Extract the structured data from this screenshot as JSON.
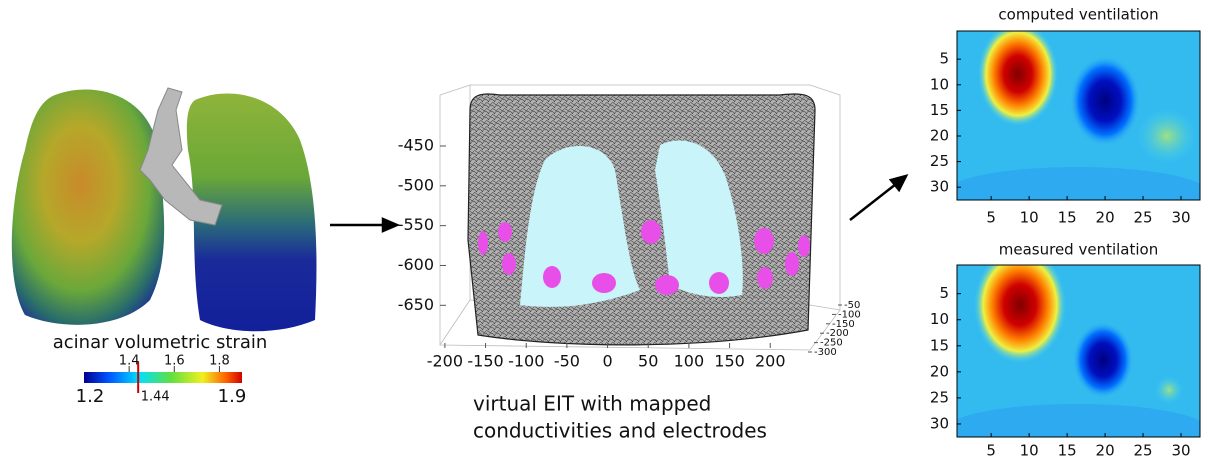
{
  "strain": {
    "label": "acinar volumetric strain",
    "colorbar": {
      "lim": [
        1.2,
        1.9
      ],
      "ticks": [
        1.4,
        1.6,
        1.8
      ],
      "ends": [
        1.2,
        1.9
      ],
      "marker": 1.44
    }
  },
  "eit": {
    "xlim": [
      -206,
      212
    ],
    "xticks": [
      -200,
      -150,
      -100,
      -50,
      0,
      50,
      100,
      150,
      200
    ],
    "ylim": [
      -386,
      -681
    ],
    "yticks": [
      -450,
      -500,
      -550,
      -600,
      -650
    ],
    "zlim": [
      -50,
      -300
    ],
    "zticks": [
      -50,
      -100,
      -150,
      -200,
      -250,
      -300
    ],
    "caption": [
      "virtual EIT with mapped",
      "conductivities and electrodes"
    ]
  },
  "ventilation": [
    {
      "title": "computed ventilation",
      "xlim": [
        0.5,
        32.5
      ],
      "xticks": [
        5,
        10,
        15,
        20,
        25,
        30
      ],
      "ylim": [
        -0.5,
        32.5
      ],
      "yticks": [
        5,
        10,
        15,
        20,
        25,
        30
      ]
    },
    {
      "title": "measured ventilation",
      "xlim": [
        0.5,
        32.5
      ],
      "xticks": [
        5,
        10,
        15,
        20,
        25,
        30
      ],
      "ylim": [
        -0.5,
        32.5
      ],
      "yticks": [
        5,
        10,
        15,
        20,
        25,
        30
      ]
    }
  ]
}
